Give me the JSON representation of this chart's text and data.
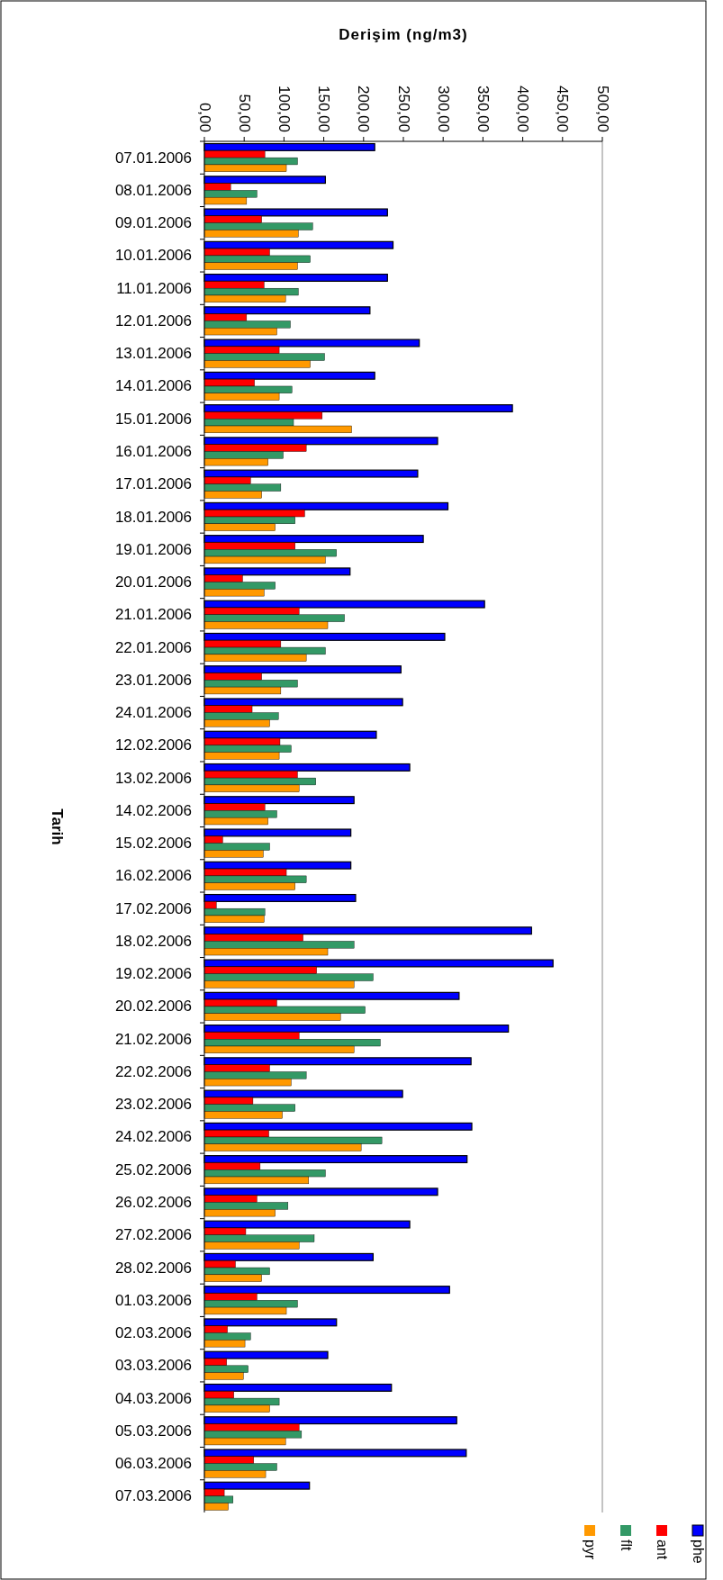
{
  "chart_data": {
    "type": "bar",
    "orientation": "horizontal",
    "title": "Derişim (ng/m3)",
    "ylabel": "Tarih",
    "categories": [
      "07.01.2006",
      "08.01.2006",
      "09.01.2006",
      "10.01.2006",
      "11.01.2006",
      "12.01.2006",
      "13.01.2006",
      "14.01.2006",
      "15.01.2006",
      "16.01.2006",
      "17.01.2006",
      "18.01.2006",
      "19.01.2006",
      "20.01.2006",
      "21.01.2006",
      "22.01.2006",
      "23.01.2006",
      "24.01.2006",
      "12.02.2006",
      "13.02.2006",
      "14.02.2006",
      "15.02.2006",
      "16.02.2006",
      "17.02.2006",
      "18.02.2006",
      "19.02.2006",
      "20.02.2006",
      "21.02.2006",
      "22.02.2006",
      "23.02.2006",
      "24.02.2006",
      "25.02.2006",
      "26.02.2006",
      "27.02.2006",
      "28.02.2006",
      "01.03.2006",
      "02.03.2006",
      "03.03.2006",
      "04.03.2006",
      "05.03.2006",
      "06.03.2006",
      "07.03.2006"
    ],
    "series": [
      {
        "name": "phe",
        "color": "#0000ff",
        "values": [
          214,
          152,
          230,
          237,
          230,
          208,
          270,
          214,
          387,
          293,
          268,
          306,
          275,
          183,
          352,
          302,
          247,
          249,
          216,
          258,
          188,
          184,
          184,
          190,
          411,
          438,
          320,
          382,
          335,
          249,
          336,
          330,
          293,
          258,
          212,
          308,
          166,
          155,
          235,
          317,
          329,
          132
        ]
      },
      {
        "name": "ant",
        "color": "#ff0000",
        "values": [
          76,
          33,
          72,
          82,
          75,
          53,
          94,
          63,
          148,
          128,
          58,
          126,
          114,
          48,
          119,
          96,
          72,
          60,
          95,
          117,
          76,
          23,
          103,
          15,
          124,
          141,
          91,
          119,
          82,
          61,
          81,
          70,
          66,
          52,
          39,
          66,
          29,
          28,
          37,
          119,
          62,
          25
        ]
      },
      {
        "name": "flt",
        "color": "#339966",
        "values": [
          117,
          66,
          136,
          133,
          118,
          108,
          151,
          110,
          112,
          99,
          96,
          114,
          166,
          89,
          176,
          152,
          117,
          93,
          109,
          140,
          91,
          82,
          128,
          76,
          188,
          212,
          202,
          221,
          128,
          114,
          223,
          152,
          105,
          138,
          82,
          117,
          58,
          55,
          94,
          122,
          91,
          36
        ]
      },
      {
        "name": "pyr",
        "color": "#ff9900",
        "values": [
          103,
          53,
          118,
          117,
          102,
          91,
          133,
          94,
          185,
          80,
          72,
          89,
          152,
          75,
          155,
          128,
          96,
          82,
          94,
          119,
          80,
          74,
          114,
          75,
          155,
          188,
          171,
          188,
          109,
          98,
          197,
          131,
          89,
          119,
          72,
          103,
          51,
          49,
          82,
          102,
          77,
          30
        ]
      }
    ],
    "xlim": [
      0,
      500
    ],
    "xticks": [
      {
        "value": 0,
        "label": "0,00"
      },
      {
        "value": 50,
        "label": "50,00"
      },
      {
        "value": 100,
        "label": "100,00"
      },
      {
        "value": 150,
        "label": "150,00"
      },
      {
        "value": 200,
        "label": "200,00"
      },
      {
        "value": 250,
        "label": "250,00"
      },
      {
        "value": 300,
        "label": "300,00"
      },
      {
        "value": 350,
        "label": "350,00"
      },
      {
        "value": 400,
        "label": "400,00"
      },
      {
        "value": 450,
        "label": "450,00"
      },
      {
        "value": 500,
        "label": "500,00"
      }
    ],
    "legend": "bottom right"
  }
}
